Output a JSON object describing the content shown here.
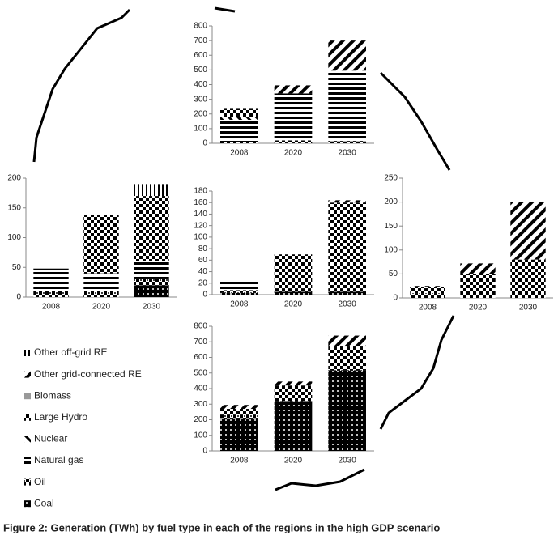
{
  "legend": [
    {
      "name": "Other off-grid RE",
      "pattern": "vertical-lines"
    },
    {
      "name": "Other grid-connected RE",
      "pattern": "diagonal-lines"
    },
    {
      "name": "Biomass",
      "pattern": "solid-gray"
    },
    {
      "name": "Large Hydro",
      "pattern": "checker"
    },
    {
      "name": "Nuclear",
      "pattern": "back-diagonal"
    },
    {
      "name": "Natural gas",
      "pattern": "horizontal-lines"
    },
    {
      "name": "Oil",
      "pattern": "dots-checker"
    },
    {
      "name": "Coal",
      "pattern": "dots"
    }
  ],
  "caption": "Figure 2: Generation (TWh) by fuel type in each of the regions in the high GDP scenario",
  "chart_data": [
    {
      "type": "bar",
      "stacked": true,
      "categories": [
        "2008",
        "2020",
        "2030"
      ],
      "series": [
        {
          "values": [
            0,
            0,
            0
          ]
        },
        {
          "values": [
            0,
            55,
            205
          ]
        },
        {
          "values": [
            0,
            0,
            0
          ]
        },
        {
          "values": [
            55,
            0,
            0
          ]
        },
        {
          "values": [
            20,
            0,
            0
          ]
        },
        {
          "values": [
            150,
            320,
            480
          ]
        },
        {
          "values": [
            10,
            20,
            15
          ]
        },
        {
          "values": [
            0,
            0,
            0
          ]
        }
      ],
      "ylim": [
        0,
        800
      ],
      "yticks": [
        0,
        100,
        200,
        300,
        400,
        500,
        600,
        700,
        800
      ]
    },
    {
      "type": "bar",
      "stacked": true,
      "categories": [
        "2008",
        "2020",
        "2030"
      ],
      "series": [
        {
          "values": [
            0,
            0,
            20
          ]
        },
        {
          "values": [
            0,
            0,
            0
          ]
        },
        {
          "values": [
            0,
            0,
            0
          ]
        },
        {
          "values": [
            0,
            98,
            110
          ]
        },
        {
          "values": [
            0,
            0,
            0
          ]
        },
        {
          "values": [
            38,
            30,
            30
          ]
        },
        {
          "values": [
            10,
            10,
            10
          ]
        },
        {
          "values": [
            0,
            0,
            20
          ]
        }
      ],
      "ylim": [
        0,
        200
      ],
      "yticks": [
        0,
        50,
        100,
        150,
        200
      ]
    },
    {
      "type": "bar",
      "stacked": true,
      "categories": [
        "2008",
        "2020",
        "2030"
      ],
      "series": [
        {
          "values": [
            0,
            0,
            0
          ]
        },
        {
          "values": [
            0,
            0,
            4
          ]
        },
        {
          "values": [
            0,
            0,
            0
          ]
        },
        {
          "values": [
            0,
            60,
            150
          ]
        },
        {
          "values": [
            0,
            0,
            0
          ]
        },
        {
          "values": [
            15,
            0,
            0
          ]
        },
        {
          "values": [
            5,
            5,
            5
          ]
        },
        {
          "values": [
            3,
            5,
            5
          ]
        }
      ],
      "ylim": [
        0,
        180
      ],
      "yticks": [
        0,
        20,
        40,
        60,
        80,
        100,
        120,
        140,
        160,
        180
      ]
    },
    {
      "type": "bar",
      "stacked": true,
      "categories": [
        "2008",
        "2020",
        "2030"
      ],
      "series": [
        {
          "values": [
            0,
            0,
            0
          ]
        },
        {
          "values": [
            3,
            22,
            120
          ]
        },
        {
          "values": [
            0,
            0,
            0
          ]
        },
        {
          "values": [
            12,
            50,
            80
          ]
        },
        {
          "values": [
            0,
            0,
            0
          ]
        },
        {
          "values": [
            0,
            0,
            0
          ]
        },
        {
          "values": [
            10,
            0,
            0
          ]
        },
        {
          "values": [
            0,
            0,
            0
          ]
        }
      ],
      "ylim": [
        0,
        250
      ],
      "yticks": [
        0,
        50,
        100,
        150,
        200,
        250
      ]
    },
    {
      "type": "bar",
      "stacked": true,
      "categories": [
        "2008",
        "2020",
        "2030"
      ],
      "series": [
        {
          "values": [
            0,
            0,
            0
          ]
        },
        {
          "values": [
            25,
            25,
            70
          ]
        },
        {
          "values": [
            0,
            0,
            0
          ]
        },
        {
          "values": [
            40,
            80,
            130
          ]
        },
        {
          "values": [
            0,
            0,
            0
          ]
        },
        {
          "values": [
            0,
            0,
            0
          ]
        },
        {
          "values": [
            20,
            20,
            25
          ]
        },
        {
          "values": [
            210,
            320,
            515
          ]
        }
      ],
      "ylim": [
        0,
        800
      ],
      "yticks": [
        0,
        100,
        200,
        300,
        400,
        500,
        600,
        700,
        800
      ]
    }
  ]
}
